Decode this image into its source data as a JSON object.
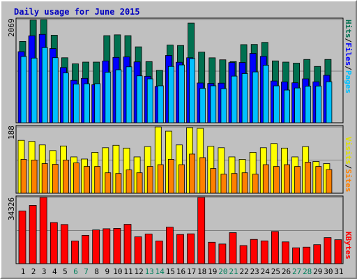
{
  "title": "Daily usage for June 2015",
  "colors": {
    "hits": "#007050",
    "files": "#0000ff",
    "pages": "#00c0ff",
    "visits": "#ffff00",
    "sites": "#ff8000",
    "kbytes": "#ff0000",
    "weekend": "#00805c",
    "weekday": "#000000",
    "separator": "#000000"
  },
  "chart_data": [
    {
      "type": "bar",
      "title": "Daily usage for June 2015",
      "categories": [
        "1",
        "2",
        "3",
        "4",
        "5",
        "6",
        "7",
        "8",
        "9",
        "10",
        "11",
        "12",
        "13",
        "14",
        "15",
        "16",
        "17",
        "18",
        "19",
        "20",
        "21",
        "22",
        "23",
        "24",
        "25",
        "26",
        "27",
        "28",
        "29",
        "30",
        "31"
      ],
      "weekend": [
        "6",
        "7",
        "13",
        "14",
        "20",
        "21",
        "27",
        "28"
      ],
      "y_tick_label": "2069",
      "ylim": [
        0,
        2069
      ],
      "axis_label": {
        "hits": "Hits",
        "sep1": "/",
        "files": "Files",
        "sep2": "/",
        "pages": "Pages"
      },
      "series": [
        {
          "name": "Hits",
          "values": [
            1630,
            2059,
            2069,
            1755,
            1303,
            1181,
            1216,
            1216,
            1746,
            1763,
            1746,
            1522,
            1226,
            1051,
            1558,
            1549,
            1998,
            1416,
            1302,
            1262,
            1226,
            1566,
            1570,
            1611,
            1240,
            1216,
            1195,
            1269,
            1129,
            1269,
            0
          ]
        },
        {
          "name": "Files",
          "values": [
            1425,
            1743,
            1772,
            1488,
            1106,
            850,
            890,
            763,
            1238,
            1310,
            1319,
            1220,
            932,
            728,
            1349,
            1213,
            1303,
            797,
            788,
            794,
            1207,
            1208,
            1390,
            1331,
            837,
            819,
            801,
            880,
            821,
            951,
            0
          ]
        },
        {
          "name": "Pages",
          "values": [
            1328,
            1296,
            1507,
            1304,
            1000,
            774,
            782,
            784,
            1013,
            1062,
            1121,
            940,
            880,
            741,
            1129,
            1159,
            1286,
            689,
            741,
            683,
            935,
            986,
            1019,
            1153,
            740,
            656,
            697,
            733,
            736,
            822,
            0
          ]
        }
      ]
    },
    {
      "type": "bar",
      "categories": [
        "1",
        "2",
        "3",
        "4",
        "5",
        "6",
        "7",
        "8",
        "9",
        "10",
        "11",
        "12",
        "13",
        "14",
        "15",
        "16",
        "17",
        "18",
        "19",
        "20",
        "21",
        "22",
        "23",
        "24",
        "25",
        "26",
        "27",
        "28",
        "29",
        "30",
        "31"
      ],
      "y_tick_label": "188",
      "ylim": [
        0,
        188
      ],
      "axis_label": {
        "visits": "Visits",
        "sep1": "/",
        "sites": "Sites"
      },
      "series": [
        {
          "name": "Visits",
          "values": [
            150,
            147,
            137,
            121,
            134,
            103,
            97,
            116,
            129,
            136,
            128,
            103,
            132,
            188,
            176,
            137,
            186,
            184,
            133,
            129,
            103,
            96,
            116,
            129,
            141,
            128,
            103,
            132,
            90,
            84,
            0
          ]
        },
        {
          "name": "Sites",
          "values": [
            96,
            94,
            84,
            82,
            94,
            86,
            76,
            76,
            58,
            56,
            66,
            58,
            76,
            81,
            96,
            81,
            111,
            101,
            70,
            54,
            56,
            58,
            54,
            81,
            76,
            81,
            76,
            88,
            76,
            67,
            0
          ]
        }
      ]
    },
    {
      "type": "bar",
      "categories": [
        "1",
        "2",
        "3",
        "4",
        "5",
        "6",
        "7",
        "8",
        "9",
        "10",
        "11",
        "12",
        "13",
        "14",
        "15",
        "16",
        "17",
        "18",
        "19",
        "20",
        "21",
        "22",
        "23",
        "24",
        "25",
        "26",
        "27",
        "28",
        "29",
        "30",
        "31"
      ],
      "y_tick_label": "34326",
      "ylim": [
        0,
        34326
      ],
      "axis_label": {
        "kbytes": "KBytes"
      },
      "series": [
        {
          "name": "KBytes",
          "values": [
            27300,
            30180,
            34326,
            21310,
            20280,
            11740,
            14680,
            17470,
            18090,
            18260,
            20380,
            13910,
            15340,
            11740,
            18900,
            15130,
            15460,
            34326,
            11100,
            10180,
            16070,
            9380,
            12570,
            11800,
            16680,
            11280,
            8220,
            8580,
            9850,
            13500,
            12400
          ]
        }
      ]
    }
  ]
}
